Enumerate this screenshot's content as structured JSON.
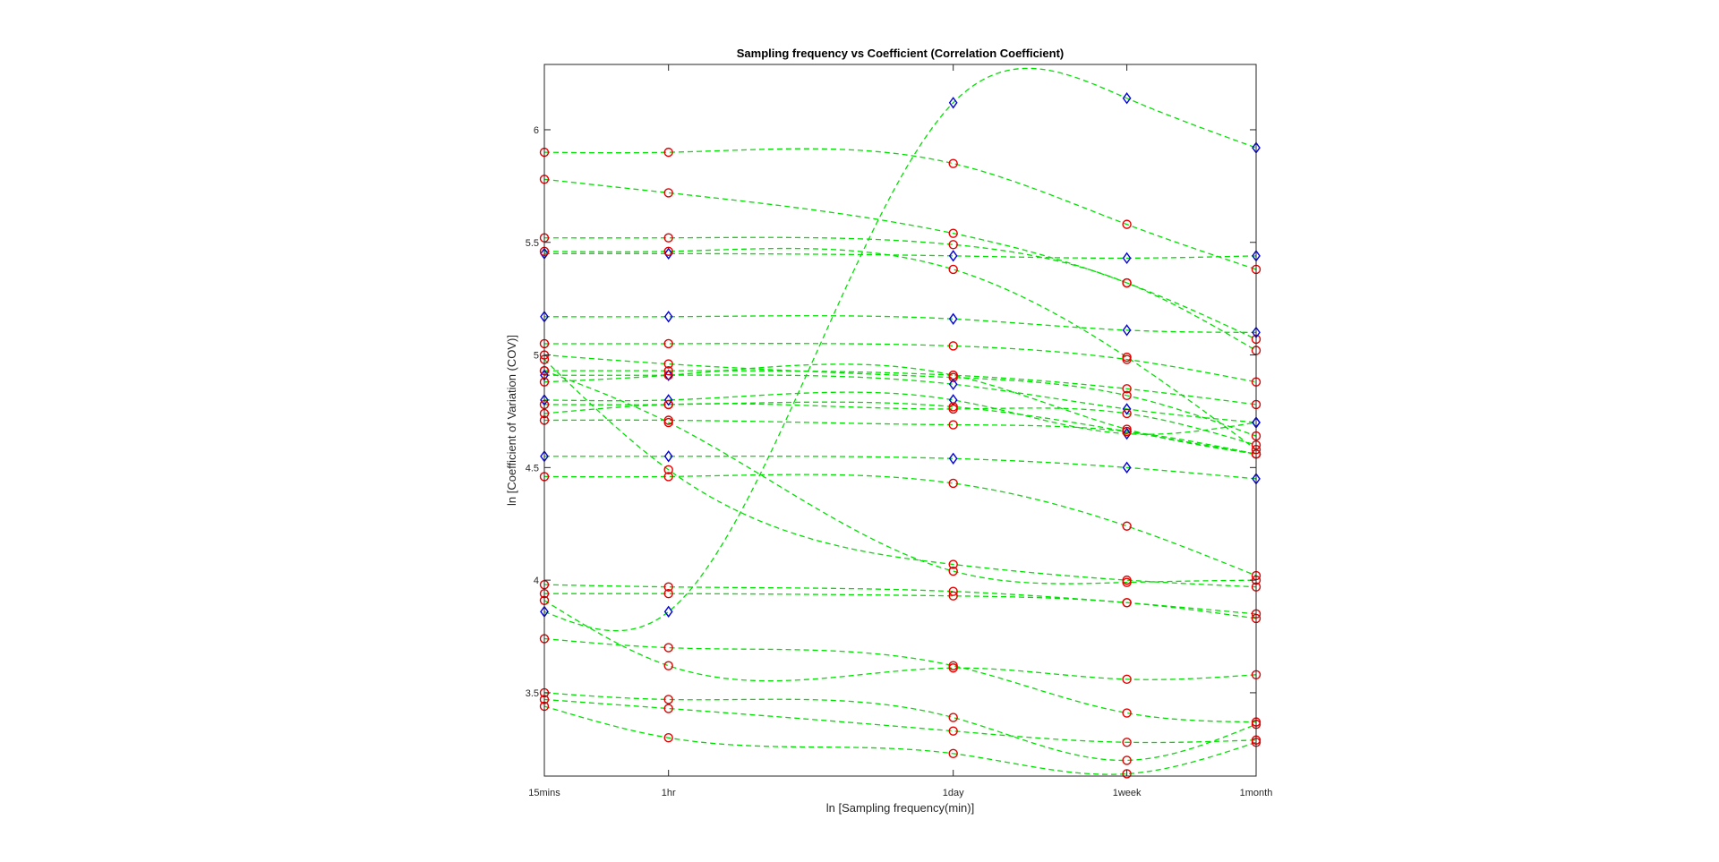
{
  "chart_data": {
    "type": "line",
    "title": "Sampling frequency vs Coefficient (Correlation Coefficient)",
    "xlabel": "ln [Sampling frequency(min)]",
    "ylabel": "ln [Coefficient of Variation (COV)]",
    "x": [
      2.708,
      4.094,
      7.272,
      9.21,
      10.653
    ],
    "xticks": [
      {
        "value": 2.708,
        "label": "15mins"
      },
      {
        "value": 4.094,
        "label": "1hr"
      },
      {
        "value": 7.272,
        "label": "1day"
      },
      {
        "value": 9.21,
        "label": "1week"
      },
      {
        "value": 10.653,
        "label": "1month"
      }
    ],
    "yticks": [
      3.5,
      4,
      4.5,
      5,
      5.5,
      6
    ],
    "xlim": [
      2.708,
      10.653
    ],
    "ylim": [
      3.13,
      6.29
    ],
    "grid": false,
    "colors": {
      "line": "#00e000",
      "circle": "#e00000",
      "diamond": "#0000e0",
      "axis": "#262626"
    },
    "series": [
      {
        "marker": "circle",
        "values": [
          5.9,
          5.9,
          5.85,
          5.58,
          5.38
        ]
      },
      {
        "marker": "circle",
        "values": [
          5.78,
          5.72,
          5.54,
          5.32,
          5.07
        ]
      },
      {
        "marker": "circle",
        "values": [
          5.52,
          5.52,
          5.49,
          5.32,
          5.02
        ]
      },
      {
        "marker": "diamond",
        "values": [
          5.45,
          5.45,
          5.44,
          5.43,
          5.44
        ]
      },
      {
        "marker": "circle",
        "values": [
          5.46,
          5.46,
          5.38,
          4.99,
          4.58
        ]
      },
      {
        "marker": "diamond",
        "values": [
          5.17,
          5.17,
          5.16,
          5.11,
          5.1
        ]
      },
      {
        "marker": "circle",
        "values": [
          5.05,
          5.05,
          5.04,
          4.98,
          4.88
        ]
      },
      {
        "marker": "circle",
        "values": [
          5.0,
          4.96,
          4.9,
          4.82,
          4.64
        ]
      },
      {
        "marker": "diamond",
        "values": [
          4.91,
          4.91,
          4.87,
          4.76,
          4.7
        ]
      },
      {
        "marker": "circle",
        "values": [
          4.93,
          4.93,
          4.91,
          4.85,
          4.78
        ]
      },
      {
        "marker": "circle",
        "values": [
          4.88,
          4.91,
          4.91,
          4.67,
          4.56
        ]
      },
      {
        "marker": "diamond",
        "values": [
          4.8,
          4.8,
          4.8,
          4.65,
          4.7
        ]
      },
      {
        "marker": "circle",
        "values": [
          4.78,
          4.78,
          4.77,
          4.66,
          4.56
        ]
      },
      {
        "marker": "circle",
        "values": [
          4.74,
          4.78,
          4.76,
          4.74,
          4.6
        ]
      },
      {
        "marker": "circle",
        "values": [
          4.71,
          4.71,
          4.69,
          4.66,
          4.56
        ]
      },
      {
        "marker": "diamond",
        "values": [
          4.55,
          4.55,
          4.54,
          4.5,
          4.45
        ]
      },
      {
        "marker": "circle",
        "values": [
          4.98,
          4.49,
          4.07,
          4.0,
          3.97
        ]
      },
      {
        "marker": "circle",
        "values": [
          4.46,
          4.46,
          4.43,
          4.24,
          4.02
        ]
      },
      {
        "marker": "circle",
        "values": [
          4.93,
          4.7,
          4.04,
          3.99,
          4.0
        ]
      },
      {
        "marker": "circle",
        "values": [
          3.98,
          3.97,
          3.95,
          3.9,
          3.85
        ]
      },
      {
        "marker": "circle",
        "values": [
          3.94,
          3.94,
          3.93,
          3.9,
          3.83
        ]
      },
      {
        "marker": "diamond",
        "values": [
          3.86,
          3.86,
          6.12,
          6.14,
          5.92
        ]
      },
      {
        "marker": "circle",
        "values": [
          3.91,
          3.62,
          3.61,
          3.56,
          3.58
        ]
      },
      {
        "marker": "circle",
        "values": [
          3.74,
          3.7,
          3.62,
          3.41,
          3.37
        ]
      },
      {
        "marker": "circle",
        "values": [
          3.5,
          3.47,
          3.39,
          3.2,
          3.36
        ]
      },
      {
        "marker": "circle",
        "values": [
          3.47,
          3.43,
          3.33,
          3.28,
          3.29
        ]
      },
      {
        "marker": "circle",
        "values": [
          3.44,
          3.3,
          3.23,
          3.14,
          3.28
        ]
      }
    ]
  }
}
